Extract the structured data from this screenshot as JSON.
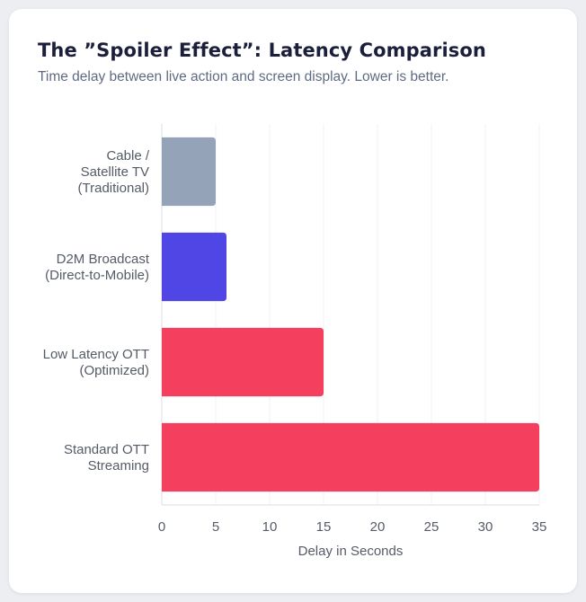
{
  "card": {
    "title": "The ”Spoiler Effect”: Latency Comparison",
    "subtitle": "Time delay between live action and screen display. Lower is better."
  },
  "chart_data": {
    "type": "bar",
    "orientation": "horizontal",
    "title": "The ”Spoiler Effect”: Latency Comparison",
    "subtitle": "Time delay between live action and screen display. Lower is better.",
    "xlabel": "Delay in Seconds",
    "ylabel": "",
    "xlim": [
      0,
      35
    ],
    "xticks": [
      0,
      5,
      10,
      15,
      20,
      25,
      30,
      35
    ],
    "grid": true,
    "legend": "none",
    "categories": [
      {
        "lines": [
          "Cable /",
          "Satellite TV",
          "(Traditional)"
        ],
        "value": 5,
        "color": "#94a3b8"
      },
      {
        "lines": [
          "D2M Broadcast",
          "(Direct-to-Mobile)"
        ],
        "value": 6,
        "color": "#4f46e5"
      },
      {
        "lines": [
          "Low Latency OTT",
          "(Optimized)"
        ],
        "value": 15,
        "color": "#f43f5e"
      },
      {
        "lines": [
          "Standard OTT",
          "Streaming"
        ],
        "value": 35,
        "color": "#f43f5e"
      }
    ]
  }
}
